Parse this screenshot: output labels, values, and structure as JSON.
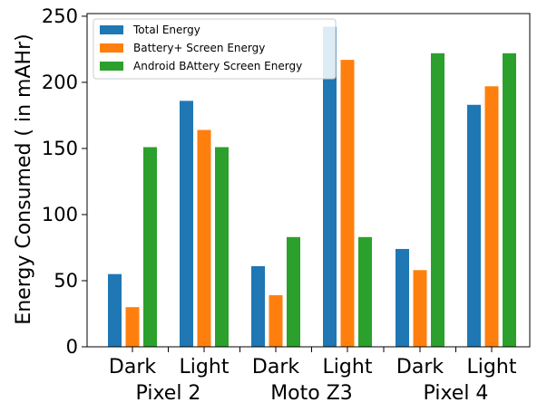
{
  "chart_data": {
    "type": "bar",
    "title": "",
    "xlabel": "",
    "ylabel": "Energy Consumed ( in mAHr)",
    "ylim": [
      0,
      252
    ],
    "yticks": [
      0,
      50,
      100,
      150,
      200,
      250
    ],
    "grid": false,
    "legend_position": "top-left",
    "groups": [
      "Pixel 2",
      "Moto Z3",
      "Pixel 4"
    ],
    "categories": [
      "Dark",
      "Light",
      "Dark",
      "Light",
      "Dark",
      "Light"
    ],
    "series": [
      {
        "name": "Total Energy",
        "color": "#1f77b4",
        "values": [
          55,
          186,
          61,
          242,
          74,
          183
        ]
      },
      {
        "name": "Battery+ Screen Energy",
        "color": "#ff7f0e",
        "values": [
          30,
          164,
          39,
          217,
          58,
          197
        ]
      },
      {
        "name": "Android BAttery Screen Energy",
        "color": "#2ca02c",
        "values": [
          151,
          151,
          83,
          83,
          222,
          222
        ]
      }
    ]
  }
}
